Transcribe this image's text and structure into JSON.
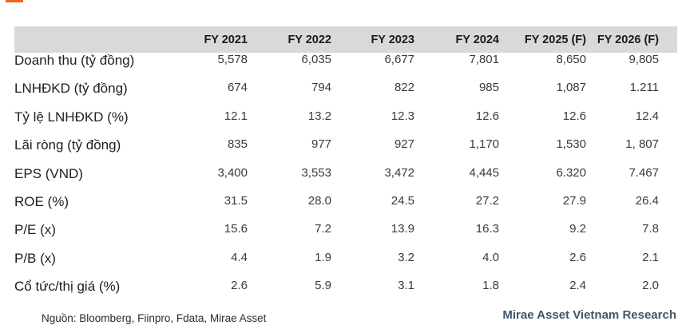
{
  "accent": {
    "color": "#f26322"
  },
  "table": {
    "header_bg": "#d9d9d9",
    "columns": [
      "FY 2021",
      "FY 2022",
      "FY 2023",
      "FY 2024",
      "FY 2025 (F)",
      "FY 2026 (F)"
    ],
    "rows": [
      {
        "label": "Doanh thu (tỷ đồng)",
        "values": [
          "5,578",
          "6,035",
          "6,677",
          "7,801",
          "8,650",
          "9,805"
        ]
      },
      {
        "label": "LNHĐKD (tỷ đồng)",
        "values": [
          "674",
          "794",
          "822",
          "985",
          "1,087",
          "1.211"
        ]
      },
      {
        "label": "Tỷ lệ LNHĐKD (%)",
        "values": [
          "12.1",
          "13.2",
          "12.3",
          "12.6",
          "12.6",
          "12.4"
        ]
      },
      {
        "label": "Lãi ròng (tỷ đồng)",
        "values": [
          "835",
          "977",
          "927",
          "1,170",
          "1,530",
          "1, 807"
        ]
      },
      {
        "label": "EPS (VND)",
        "values": [
          "3,400",
          "3,553",
          "3,472",
          "4,445",
          "6.320",
          "7.467"
        ]
      },
      {
        "label": "ROE (%)",
        "values": [
          "31.5",
          "28.0",
          "24.5",
          "27.2",
          "27.9",
          "26.4"
        ]
      },
      {
        "label": "P/E (x)",
        "values": [
          "15.6",
          "7.2",
          "13.9",
          "16.3",
          "9.2",
          "7.8"
        ]
      },
      {
        "label": "P/B (x)",
        "values": [
          "4.4",
          "1.9",
          "3.2",
          "4.0",
          "2.6",
          "2.1"
        ]
      },
      {
        "label": "Cổ tức/thị giá (%)",
        "values": [
          "2.6",
          "5.9",
          "3.1",
          "1.8",
          "2.4",
          "2.0"
        ]
      }
    ]
  },
  "footer": {
    "source": "Nguồn: Bloomberg, Fiinpro, Fdata, Mirae Asset",
    "attribution": "Mirae Asset Vietnam Research",
    "attribution_color": "#44546a"
  }
}
